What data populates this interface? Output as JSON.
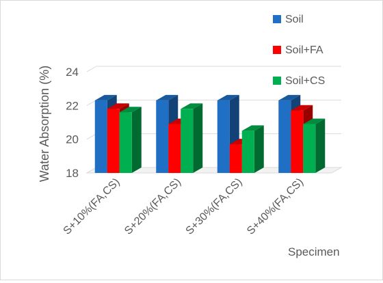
{
  "chart_data": {
    "type": "bar",
    "style": "3d-clustered-column",
    "title": "",
    "xlabel": "Specimen",
    "ylabel": "Water Absorption (%)",
    "ylim": [
      18,
      24
    ],
    "yticks": [
      18,
      20,
      22,
      24
    ],
    "grid": true,
    "legend_position": "top-right",
    "categories": [
      "S+10%(FA,CS)",
      "S+20%(FA,CS)",
      "S+30%(FA,CS)",
      "S+40%(FA,CS)"
    ],
    "series": [
      {
        "name": "Soil",
        "color": "#1f6fc5",
        "values": [
          22.3,
          22.3,
          22.3,
          22.3
        ]
      },
      {
        "name": "Soil+FA",
        "color": "#ff0000",
        "values": [
          21.8,
          20.9,
          19.7,
          21.7
        ]
      },
      {
        "name": "Soil+CS",
        "color": "#00b050",
        "values": [
          21.6,
          21.8,
          20.5,
          20.9
        ]
      }
    ]
  }
}
